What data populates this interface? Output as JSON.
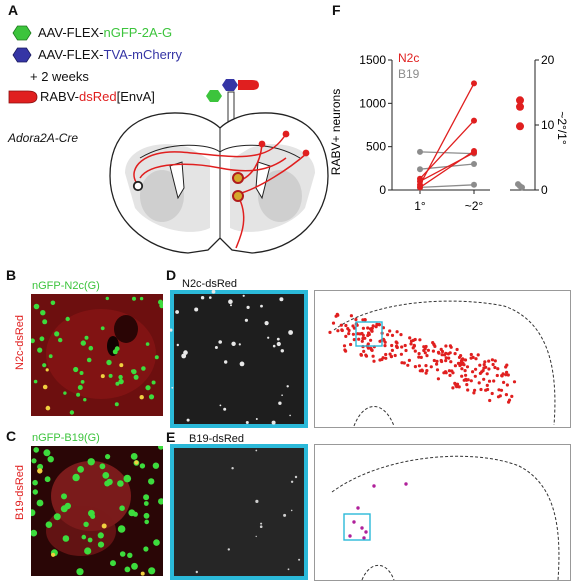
{
  "panels": {
    "A": "A",
    "B": "B",
    "C": "C",
    "D": "D",
    "E": "E",
    "F": "F"
  },
  "panelA": {
    "virus1_prefix": "AAV-FLEX-",
    "virus1_suffix": "nGFP-2A-G",
    "virus2_prefix": "AAV-FLEX-",
    "virus2_suffix": "TVA-mCherry",
    "wait": "+ 2 weeks",
    "virus3_prefix": "RABV-",
    "virus3_mid": "dsRed",
    "virus3_suffix": "[EnvA]",
    "mouse_line": "Adora2A-Cre"
  },
  "panelB": {
    "top_label": "nGFP-N2c(G)",
    "side_label": "N2c-dsRed"
  },
  "panelC": {
    "top_label": "nGFP-B19(G)",
    "side_label": "B19-dsRed"
  },
  "panelD": {
    "title": "N2c-dsRed"
  },
  "panelE": {
    "title": "B19-dsRed"
  },
  "colors": {
    "green": "#3cc43c",
    "blue": "#3535a5",
    "red": "#e01f1f",
    "grey": "#8c8c8c",
    "cyan": "#2bb9d9",
    "magenta": "#b0209a"
  },
  "chart_data": {
    "type": "line",
    "title": "",
    "ylabel": "RABV+ neurons",
    "ylabel_right": "~2°/1°",
    "categories": [
      "1°",
      "~2°"
    ],
    "ylim": [
      0,
      1500
    ],
    "yticks": [
      "0",
      "500",
      "1000",
      "1500"
    ],
    "ylim_right": [
      0,
      20
    ],
    "yticks_right": [
      "0",
      "10",
      "20"
    ],
    "legend": [
      "N2c",
      "B19"
    ],
    "series": [
      {
        "name": "N2c",
        "pairs": [
          [
            60,
            1230
          ],
          [
            130,
            800
          ],
          [
            30,
            450
          ],
          [
            100,
            430
          ]
        ]
      },
      {
        "name": "B19",
        "pairs": [
          [
            440,
            420
          ],
          [
            240,
            300
          ],
          [
            30,
            60
          ]
        ]
      }
    ],
    "ratios": [
      {
        "name": "N2c",
        "values": [
          13.8,
          12.8,
          9.8
        ]
      },
      {
        "name": "B19",
        "values": [
          0.9,
          0.6,
          0.4
        ]
      }
    ]
  }
}
